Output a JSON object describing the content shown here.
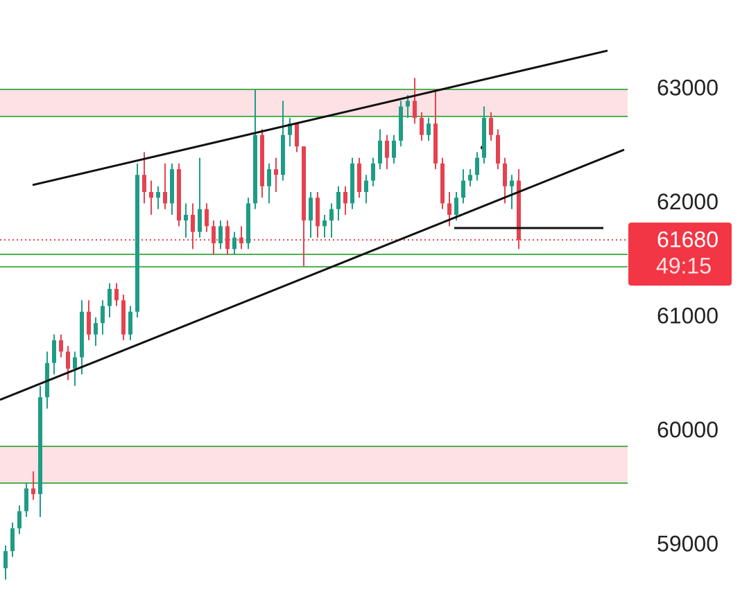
{
  "chart_data": {
    "type": "candlestick",
    "up_color": "#1f9c86",
    "down_color": "#e5424f",
    "ylim": [
      58416,
      63784
    ],
    "yticks": [
      59000,
      60000,
      61000,
      62000,
      63000
    ],
    "last_price": 61680,
    "countdown": "49:15",
    "zones": [
      {
        "low": 62763,
        "high": 63000,
        "fill": "#fde1e4",
        "line_color": "#4caf50"
      },
      {
        "low": 61444,
        "high": 61553,
        "fill": "none",
        "line_color": "#4caf50"
      },
      {
        "low": 59547,
        "high": 59869,
        "fill": "#fde1e4",
        "line_color": "#4caf50"
      }
    ],
    "trendlines": [
      {
        "x0": 3.9,
        "y0": 62161,
        "x1": 86.8,
        "y1": 63340
      },
      {
        "x0": -0.8,
        "y0": 60277,
        "x1": 89.2,
        "y1": 62471
      },
      {
        "x0": 64.7,
        "y0": 61784,
        "x1": 86.2,
        "y1": 61784
      }
    ],
    "open": [
      58800,
      58950,
      59150,
      59300,
      59500,
      59450,
      60300,
      60600,
      60800,
      60700,
      60550,
      60650,
      61050,
      60850,
      60950,
      61100,
      61250,
      61150,
      60850,
      61050,
      62250,
      62100,
      62050,
      62100,
      62000,
      62300,
      61850,
      61900,
      61750,
      61950,
      61800,
      61650,
      61800,
      61600,
      61700,
      61650,
      62000,
      62600,
      62150,
      62300,
      62250,
      62600,
      62700,
      62500,
      61850,
      62050,
      61800,
      61850,
      61950,
      62100,
      62000,
      62350,
      62100,
      62200,
      62350,
      62550,
      62400,
      62550,
      62850,
      62900,
      62750,
      62600,
      62700,
      62350,
      62000,
      61900,
      62050,
      62200,
      62250,
      62400,
      62750,
      62600,
      62350,
      62150,
      62200
    ],
    "high": [
      59000,
      59200,
      59350,
      59550,
      59650,
      60400,
      60700,
      60850,
      60850,
      60750,
      60700,
      61150,
      61150,
      61000,
      61150,
      61300,
      61300,
      61200,
      61100,
      62350,
      62450,
      62200,
      62150,
      62350,
      62350,
      62350,
      62000,
      62000,
      62400,
      62000,
      61850,
      61850,
      61850,
      61750,
      61800,
      62050,
      63000,
      62650,
      62350,
      62400,
      62900,
      62750,
      62700,
      62500,
      62100,
      62100,
      61900,
      62000,
      62150,
      62150,
      62400,
      62400,
      62250,
      62400,
      62650,
      62600,
      62600,
      62900,
      62950,
      63100,
      62800,
      62750,
      63000,
      62400,
      62100,
      62100,
      62300,
      62300,
      62450,
      62850,
      62800,
      62650,
      62400,
      62250,
      62300
    ],
    "low": [
      58700,
      58900,
      59100,
      59250,
      59400,
      59250,
      60200,
      60500,
      60650,
      60450,
      60400,
      60500,
      60800,
      60750,
      60850,
      61000,
      61100,
      60800,
      60800,
      61000,
      62000,
      61900,
      61950,
      61950,
      61900,
      61800,
      61700,
      61600,
      61700,
      61750,
      61550,
      61600,
      61550,
      61550,
      61600,
      61600,
      61950,
      62050,
      62000,
      62100,
      62200,
      62500,
      62450,
      61450,
      61700,
      61700,
      61700,
      61700,
      61850,
      61900,
      61950,
      62050,
      62000,
      62150,
      62300,
      62300,
      62350,
      62500,
      62750,
      62700,
      62550,
      62550,
      62300,
      61950,
      61800,
      61850,
      62000,
      62150,
      62200,
      62350,
      62550,
      62300,
      62000,
      61950,
      61600
    ],
    "close": [
      58950,
      59150,
      59300,
      59500,
      59450,
      60300,
      60600,
      60800,
      60700,
      60550,
      60650,
      61050,
      60850,
      60950,
      61100,
      61250,
      61150,
      60850,
      61050,
      62250,
      62100,
      62050,
      62100,
      62000,
      62300,
      61850,
      61900,
      61750,
      61950,
      61800,
      61650,
      61800,
      61600,
      61700,
      61650,
      62000,
      62600,
      62150,
      62300,
      62250,
      62600,
      62700,
      62500,
      61850,
      62050,
      61800,
      61850,
      61950,
      62100,
      62000,
      62350,
      62100,
      62200,
      62350,
      62550,
      62400,
      62550,
      62850,
      62900,
      62750,
      62600,
      62700,
      62350,
      62000,
      61900,
      62050,
      62200,
      62250,
      62400,
      62750,
      62600,
      62350,
      62150,
      62200,
      61680
    ]
  }
}
